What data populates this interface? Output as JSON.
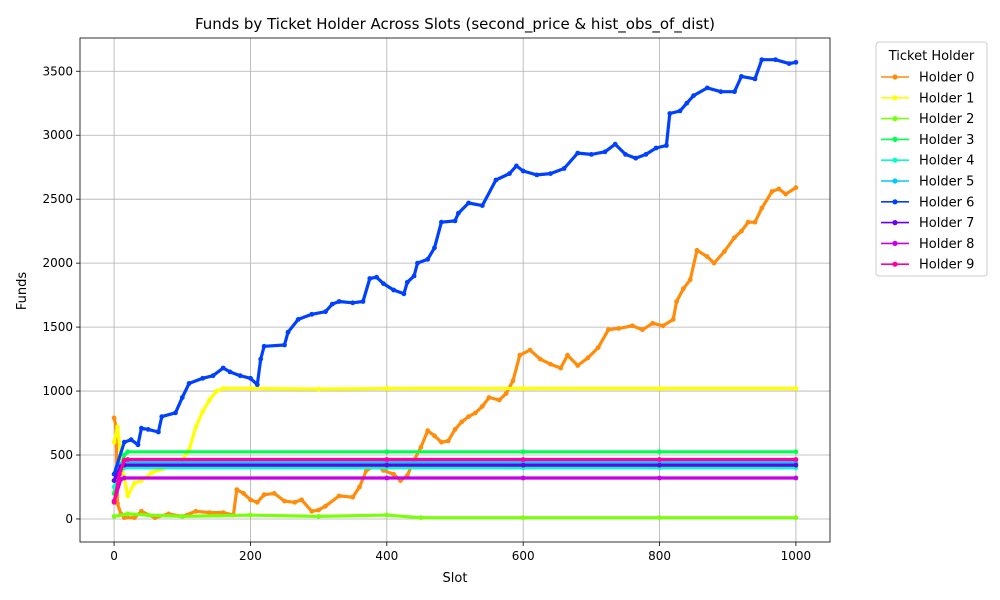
{
  "chart_data": {
    "type": "line",
    "title": "Funds by Ticket Holder Across Slots (second_price & hist_obs_of_dist)",
    "xlabel": "Slot",
    "ylabel": "Funds",
    "xlim": [
      -50,
      1050
    ],
    "ylim": [
      -180,
      3760
    ],
    "xticks": [
      0,
      200,
      400,
      600,
      800,
      1000
    ],
    "yticks": [
      0,
      500,
      1000,
      1500,
      2000,
      2500,
      3000,
      3500
    ],
    "grid": true,
    "legend": {
      "title": "Ticket Holder",
      "placement": "outside-right"
    },
    "series": [
      {
        "name": "Holder 0",
        "color": "#ff8c0a",
        "points": [
          [
            0,
            790
          ],
          [
            3,
            720
          ],
          [
            5,
            120
          ],
          [
            10,
            40
          ],
          [
            15,
            10
          ],
          [
            30,
            10
          ],
          [
            40,
            60
          ],
          [
            60,
            10
          ],
          [
            80,
            40
          ],
          [
            100,
            20
          ],
          [
            120,
            60
          ],
          [
            140,
            50
          ],
          [
            160,
            50
          ],
          [
            175,
            30
          ],
          [
            180,
            230
          ],
          [
            190,
            200
          ],
          [
            200,
            150
          ],
          [
            210,
            130
          ],
          [
            220,
            190
          ],
          [
            235,
            200
          ],
          [
            250,
            140
          ],
          [
            265,
            130
          ],
          [
            275,
            150
          ],
          [
            290,
            60
          ],
          [
            300,
            70
          ],
          [
            310,
            100
          ],
          [
            330,
            180
          ],
          [
            350,
            170
          ],
          [
            360,
            250
          ],
          [
            370,
            380
          ],
          [
            385,
            420
          ],
          [
            395,
            380
          ],
          [
            410,
            350
          ],
          [
            420,
            300
          ],
          [
            430,
            340
          ],
          [
            440,
            460
          ],
          [
            450,
            560
          ],
          [
            460,
            690
          ],
          [
            470,
            650
          ],
          [
            480,
            600
          ],
          [
            490,
            610
          ],
          [
            500,
            700
          ],
          [
            510,
            760
          ],
          [
            520,
            800
          ],
          [
            530,
            830
          ],
          [
            540,
            880
          ],
          [
            550,
            950
          ],
          [
            565,
            930
          ],
          [
            575,
            980
          ],
          [
            585,
            1080
          ],
          [
            595,
            1280
          ],
          [
            610,
            1320
          ],
          [
            625,
            1250
          ],
          [
            640,
            1210
          ],
          [
            655,
            1180
          ],
          [
            665,
            1280
          ],
          [
            680,
            1200
          ],
          [
            695,
            1260
          ],
          [
            710,
            1340
          ],
          [
            725,
            1480
          ],
          [
            740,
            1490
          ],
          [
            760,
            1510
          ],
          [
            775,
            1480
          ],
          [
            790,
            1530
          ],
          [
            805,
            1510
          ],
          [
            820,
            1560
          ],
          [
            825,
            1700
          ],
          [
            835,
            1800
          ],
          [
            845,
            1870
          ],
          [
            855,
            2100
          ],
          [
            870,
            2050
          ],
          [
            880,
            2000
          ],
          [
            895,
            2090
          ],
          [
            910,
            2200
          ],
          [
            920,
            2250
          ],
          [
            930,
            2320
          ],
          [
            940,
            2320
          ],
          [
            950,
            2430
          ],
          [
            965,
            2560
          ],
          [
            975,
            2580
          ],
          [
            985,
            2540
          ],
          [
            1000,
            2590
          ]
        ]
      },
      {
        "name": "Holder 1",
        "color": "#ffff00",
        "points": [
          [
            0,
            600
          ],
          [
            5,
            720
          ],
          [
            12,
            400
          ],
          [
            20,
            180
          ],
          [
            30,
            280
          ],
          [
            40,
            300
          ],
          [
            55,
            360
          ],
          [
            70,
            390
          ],
          [
            85,
            420
          ],
          [
            100,
            460
          ],
          [
            110,
            540
          ],
          [
            120,
            720
          ],
          [
            130,
            840
          ],
          [
            140,
            930
          ],
          [
            150,
            1000
          ],
          [
            160,
            1020
          ],
          [
            200,
            1020
          ],
          [
            300,
            1015
          ],
          [
            400,
            1020
          ],
          [
            600,
            1020
          ],
          [
            800,
            1020
          ],
          [
            1000,
            1020
          ]
        ]
      },
      {
        "name": "Holder 2",
        "color": "#7aff0a",
        "points": [
          [
            0,
            20
          ],
          [
            20,
            40
          ],
          [
            50,
            30
          ],
          [
            100,
            20
          ],
          [
            200,
            30
          ],
          [
            300,
            20
          ],
          [
            400,
            30
          ],
          [
            450,
            10
          ],
          [
            600,
            10
          ],
          [
            800,
            10
          ],
          [
            1000,
            10
          ]
        ]
      },
      {
        "name": "Holder 3",
        "color": "#00ff50",
        "points": [
          [
            0,
            200
          ],
          [
            15,
            500
          ],
          [
            20,
            525
          ],
          [
            400,
            525
          ],
          [
            600,
            525
          ],
          [
            800,
            525
          ],
          [
            1000,
            525
          ]
        ]
      },
      {
        "name": "Holder 4",
        "color": "#00ffc8",
        "points": [
          [
            0,
            250
          ],
          [
            10,
            380
          ],
          [
            15,
            400
          ],
          [
            400,
            400
          ],
          [
            600,
            400
          ],
          [
            800,
            400
          ],
          [
            1000,
            400
          ]
        ]
      },
      {
        "name": "Holder 5",
        "color": "#00c8ff",
        "points": [
          [
            0,
            300
          ],
          [
            10,
            430
          ],
          [
            15,
            440
          ],
          [
            400,
            440
          ],
          [
            600,
            440
          ],
          [
            800,
            440
          ],
          [
            1000,
            440
          ]
        ]
      },
      {
        "name": "Holder 6",
        "color": "#0040ff",
        "points": [
          [
            0,
            350
          ],
          [
            15,
            600
          ],
          [
            25,
            620
          ],
          [
            35,
            580
          ],
          [
            40,
            710
          ],
          [
            50,
            700
          ],
          [
            65,
            680
          ],
          [
            70,
            800
          ],
          [
            90,
            830
          ],
          [
            100,
            950
          ],
          [
            110,
            1060
          ],
          [
            130,
            1100
          ],
          [
            145,
            1120
          ],
          [
            160,
            1180
          ],
          [
            170,
            1150
          ],
          [
            185,
            1120
          ],
          [
            200,
            1100
          ],
          [
            210,
            1050
          ],
          [
            215,
            1250
          ],
          [
            220,
            1350
          ],
          [
            250,
            1360
          ],
          [
            255,
            1460
          ],
          [
            270,
            1560
          ],
          [
            290,
            1600
          ],
          [
            310,
            1620
          ],
          [
            320,
            1680
          ],
          [
            330,
            1700
          ],
          [
            350,
            1690
          ],
          [
            365,
            1700
          ],
          [
            375,
            1880
          ],
          [
            385,
            1890
          ],
          [
            395,
            1840
          ],
          [
            410,
            1790
          ],
          [
            425,
            1760
          ],
          [
            430,
            1850
          ],
          [
            440,
            1900
          ],
          [
            445,
            2000
          ],
          [
            460,
            2030
          ],
          [
            470,
            2120
          ],
          [
            480,
            2320
          ],
          [
            500,
            2330
          ],
          [
            505,
            2390
          ],
          [
            520,
            2470
          ],
          [
            540,
            2450
          ],
          [
            560,
            2650
          ],
          [
            580,
            2700
          ],
          [
            590,
            2760
          ],
          [
            600,
            2720
          ],
          [
            620,
            2690
          ],
          [
            640,
            2700
          ],
          [
            660,
            2740
          ],
          [
            680,
            2860
          ],
          [
            700,
            2850
          ],
          [
            720,
            2870
          ],
          [
            735,
            2930
          ],
          [
            750,
            2850
          ],
          [
            765,
            2820
          ],
          [
            780,
            2850
          ],
          [
            795,
            2900
          ],
          [
            810,
            2920
          ],
          [
            815,
            3170
          ],
          [
            830,
            3190
          ],
          [
            840,
            3250
          ],
          [
            850,
            3310
          ],
          [
            870,
            3370
          ],
          [
            890,
            3340
          ],
          [
            910,
            3340
          ],
          [
            920,
            3460
          ],
          [
            940,
            3440
          ],
          [
            950,
            3590
          ],
          [
            970,
            3590
          ],
          [
            990,
            3560
          ],
          [
            1000,
            3570
          ]
        ]
      },
      {
        "name": "Holder 7",
        "color": "#6a00e6",
        "points": [
          [
            0,
            300
          ],
          [
            10,
            410
          ],
          [
            15,
            420
          ],
          [
            400,
            420
          ],
          [
            600,
            420
          ],
          [
            800,
            420
          ],
          [
            1000,
            420
          ]
        ]
      },
      {
        "name": "Holder 8",
        "color": "#c800e6",
        "points": [
          [
            0,
            140
          ],
          [
            10,
            310
          ],
          [
            15,
            320
          ],
          [
            400,
            320
          ],
          [
            600,
            320
          ],
          [
            800,
            320
          ],
          [
            1000,
            320
          ]
        ]
      },
      {
        "name": "Holder 9",
        "color": "#ff00a0",
        "points": [
          [
            0,
            130
          ],
          [
            8,
            350
          ],
          [
            15,
            460
          ],
          [
            20,
            465
          ],
          [
            400,
            465
          ],
          [
            600,
            465
          ],
          [
            800,
            465
          ],
          [
            1000,
            465
          ]
        ]
      }
    ]
  }
}
